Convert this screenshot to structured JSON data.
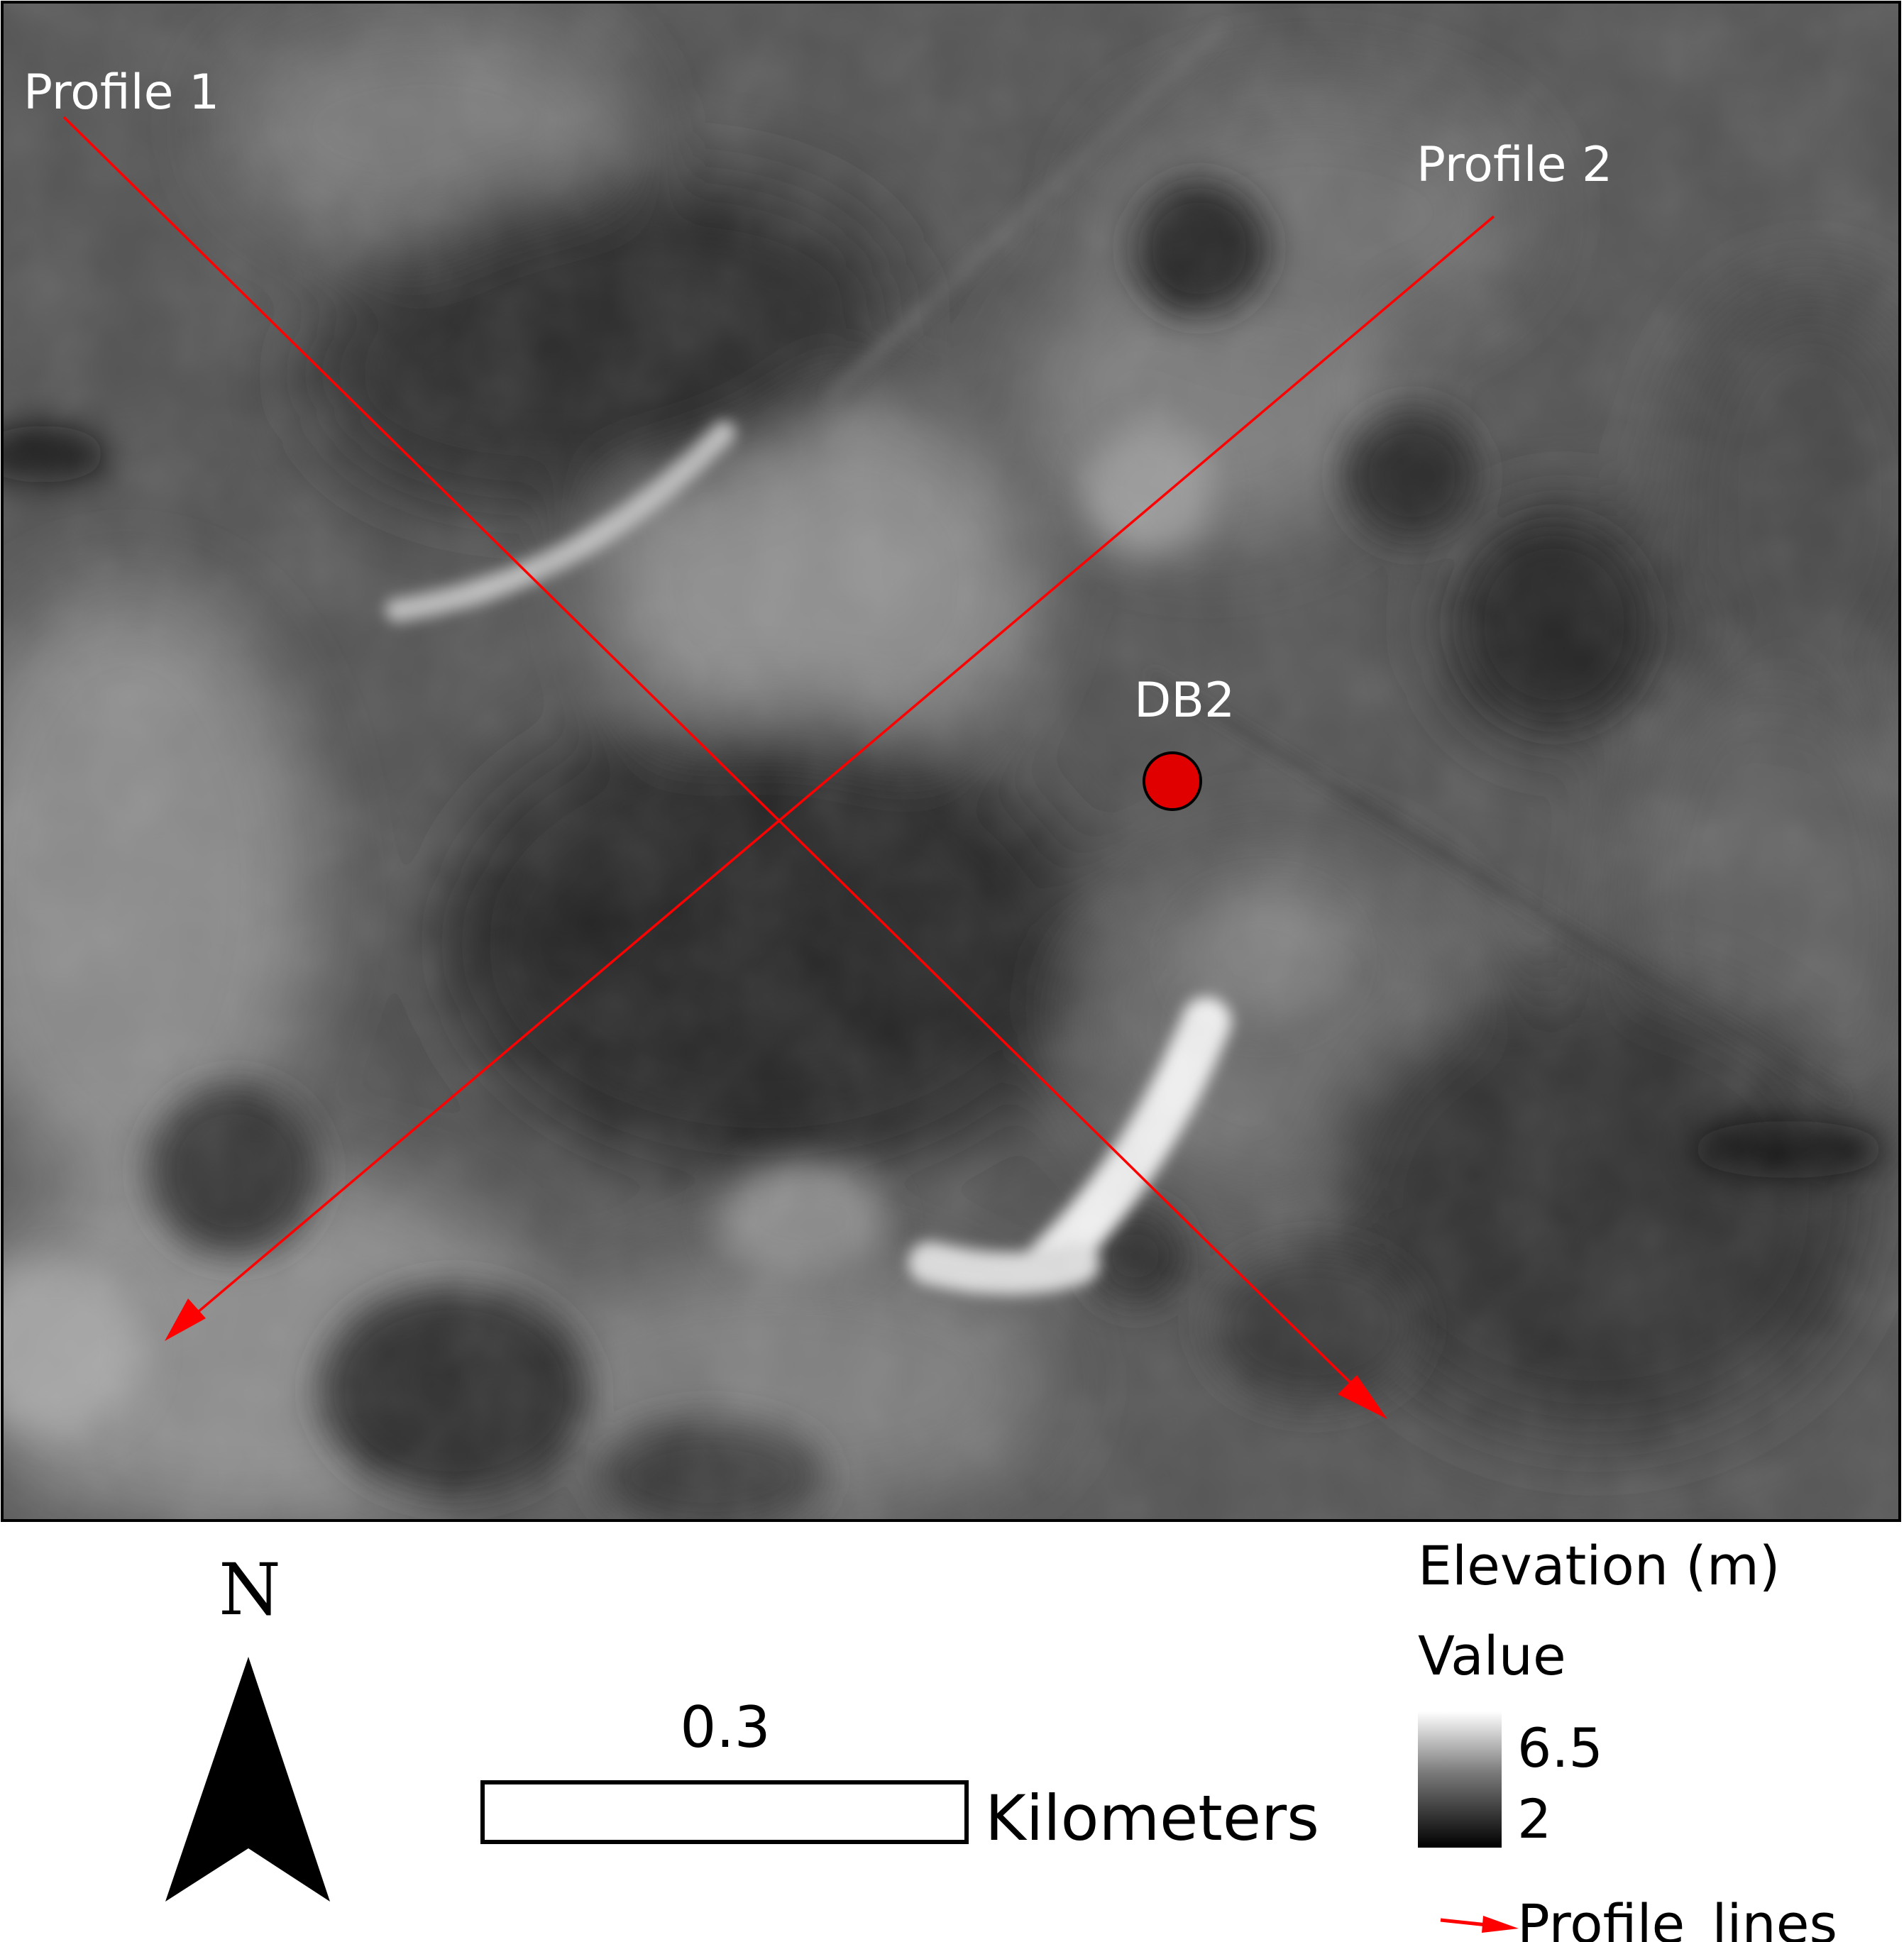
{
  "map": {
    "profile_1_label": "Profile 1",
    "profile_2_label": "Profile 2",
    "site_label": "DB2",
    "profile_color": "#ff0000",
    "site_color": "#e00000"
  },
  "north_arrow": {
    "label": "N"
  },
  "scale_bar": {
    "value_label": "0.3",
    "unit_label": "Kilometers"
  },
  "legend": {
    "title": "Elevation (m)",
    "subtitle": "Value",
    "max_label": "6.5",
    "min_label": "2",
    "line_label": "Profile_lines",
    "ramp_high_color": "#ffffff",
    "ramp_low_color": "#000000"
  }
}
